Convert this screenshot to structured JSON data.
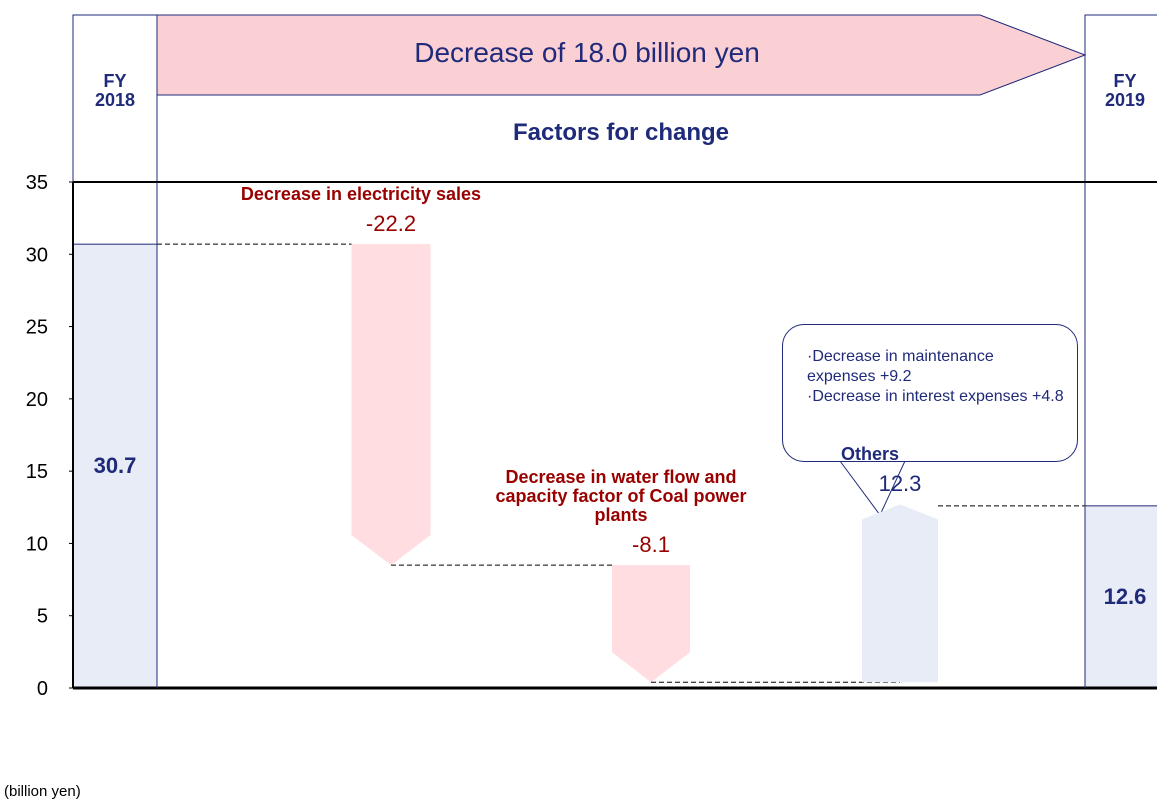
{
  "chart_data": {
    "type": "waterfall",
    "banner": "Decrease of 18.0 billion yen",
    "subtitle": "Factors for change",
    "y_unit": "(billion yen)",
    "categories": [
      "FY 2018",
      "Decrease in electricity sales",
      "Decrease in water flow and capacity factor of Coal power plants",
      "Others",
      "FY 2019"
    ],
    "measures": [
      "total",
      "relative",
      "relative",
      "relative",
      "total"
    ],
    "values": [
      30.7,
      -22.2,
      -8.1,
      12.3,
      12.6
    ],
    "colors": {
      "total": "#e8ecf6",
      "decrease": "#ffdde0",
      "increase": "#e8ecf6"
    },
    "annotation": [
      "·Decrease in maintenance expenses +9.2",
      "·Decrease in interest expenses +4.8"
    ],
    "ylim": [
      0,
      35
    ],
    "yticks": [
      0,
      5,
      10,
      15,
      20,
      25,
      30,
      35
    ]
  }
}
